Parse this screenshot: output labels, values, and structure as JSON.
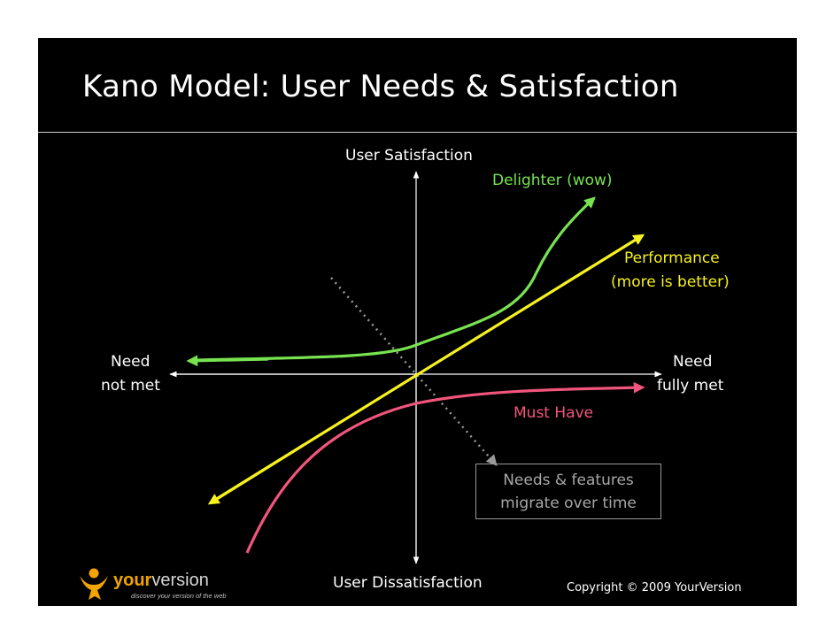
{
  "slide": {
    "title": "Kano Model: User Needs & Satisfaction",
    "background": "#000000"
  },
  "axes": {
    "y_top": "User Satisfaction",
    "y_bottom": "User Dissatisfaction",
    "x_left_line1": "Need",
    "x_left_line2": "not met",
    "x_right_line1": "Need",
    "x_right_line2": "fully met"
  },
  "curves": [
    {
      "label_line1": "Delighter (wow)",
      "label_line2": "",
      "color": "#78e350"
    },
    {
      "label_line1": "Performance",
      "label_line2": "(more is better)",
      "color": "#f7f21e"
    },
    {
      "label_line1": "Must Have",
      "label_line2": "",
      "color": "#f2557b"
    }
  ],
  "migration": {
    "line1": "Needs & features",
    "line2": "migrate over time",
    "color": "#9a9a9a"
  },
  "logo": {
    "word_your": "your",
    "word_version": "version",
    "tagline": "discover your version of the web",
    "icon": "person-icon",
    "accent": "#f2a400"
  },
  "footer": {
    "copyright": "Copyright © 2009 YourVersion"
  }
}
